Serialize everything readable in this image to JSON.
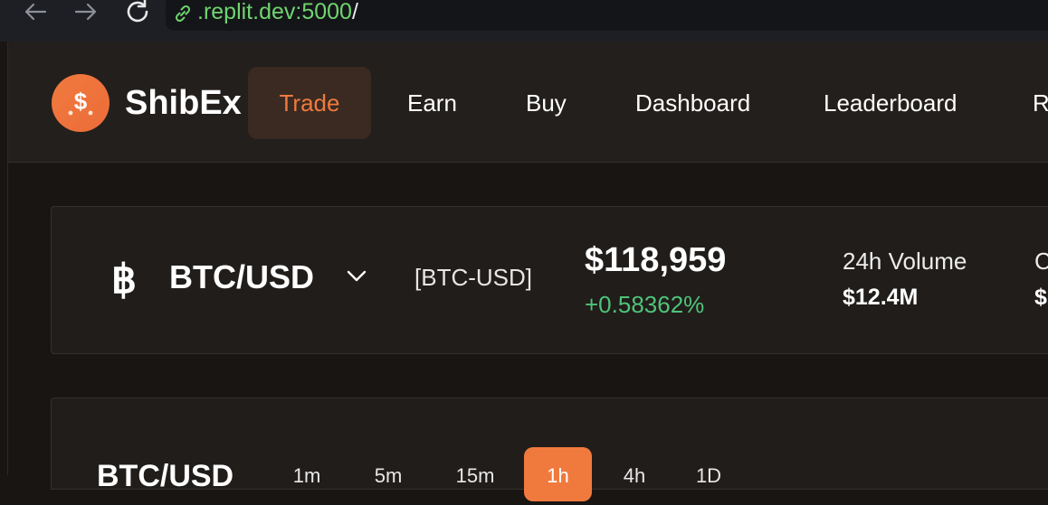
{
  "browser": {
    "url_domain": ".replit.dev:5000",
    "url_path": "/"
  },
  "header": {
    "logo_symbol": "$",
    "logo_text": "ShibEx",
    "nav": [
      {
        "label": "Trade",
        "active": true
      },
      {
        "label": "Earn",
        "active": false
      },
      {
        "label": "Buy",
        "active": false
      },
      {
        "label": "Dashboard",
        "active": false
      },
      {
        "label": "Leaderboard",
        "active": false
      },
      {
        "label": "R",
        "active": false
      }
    ]
  },
  "ticker": {
    "coin_symbol": "฿",
    "pair": "BTC/USD",
    "symbol_code": "[BTC-USD]",
    "price": "$118,959",
    "change": "+0.58362%",
    "stats": [
      {
        "label": "24h Volume",
        "value": "$12.4M"
      },
      {
        "label": "C",
        "value": "$"
      }
    ]
  },
  "chart": {
    "title": "BTC/USD",
    "timeframes": [
      {
        "label": "1m",
        "active": false
      },
      {
        "label": "5m",
        "active": false
      },
      {
        "label": "15m",
        "active": false
      },
      {
        "label": "1h",
        "active": true
      },
      {
        "label": "4h",
        "active": false
      },
      {
        "label": "1D",
        "active": false
      }
    ]
  },
  "colors": {
    "accent": "#f07a3e",
    "positive": "#4fc37a",
    "url": "#6fd46f",
    "background": "#181513"
  }
}
